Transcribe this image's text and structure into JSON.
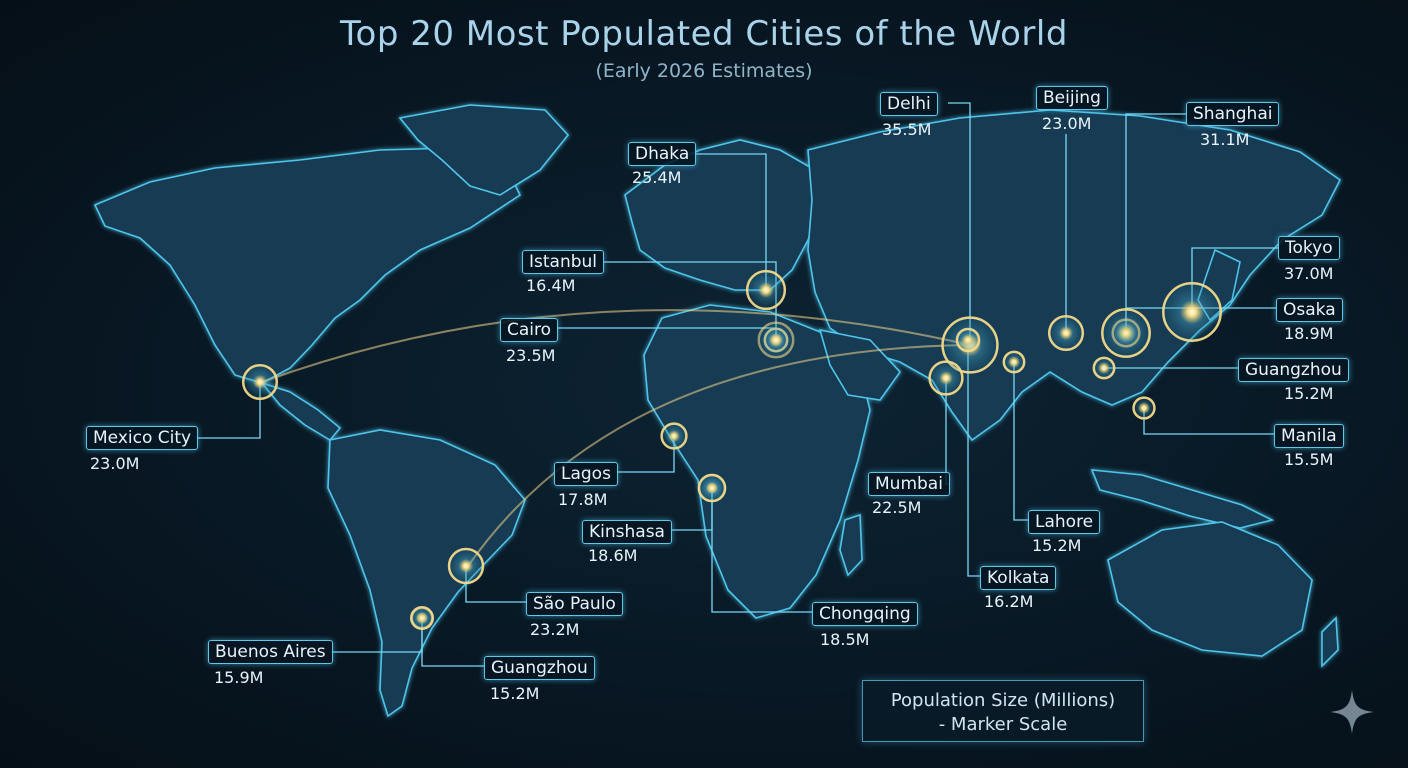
{
  "title": "Top 20 Most Populated Cities of the World",
  "subtitle": "(Early 2026 Estimates)",
  "legend": {
    "line1": "Population Size (Millions)",
    "line2": "- Marker Scale"
  },
  "colors": {
    "land": "#123a52",
    "coast": "#4fc4ea",
    "glow": "#f3d98a",
    "label_border": "#5ec8e8"
  },
  "cities": [
    {
      "name": "Delhi",
      "value": "35.5M",
      "pop": 35.5
    },
    {
      "name": "Beijing",
      "value": "23.0M",
      "pop": 23.0
    },
    {
      "name": "Shanghai",
      "value": "31.1M",
      "pop": 31.1
    },
    {
      "name": "Dhaka",
      "value": "25.4M",
      "pop": 25.4
    },
    {
      "name": "Istanbul",
      "value": "16.4M",
      "pop": 16.4
    },
    {
      "name": "Tokyo",
      "value": "37.0M",
      "pop": 37.0
    },
    {
      "name": "Osaka",
      "value": "18.9M",
      "pop": 18.9
    },
    {
      "name": "Cairo",
      "value": "23.5M",
      "pop": 23.5
    },
    {
      "name": "Guangzhou",
      "value": "15.2M",
      "pop": 15.2
    },
    {
      "name": "Mexico City",
      "value": "23.0M",
      "pop": 23.0
    },
    {
      "name": "Manila",
      "value": "15.5M",
      "pop": 15.5
    },
    {
      "name": "Lagos",
      "value": "17.8M",
      "pop": 17.8
    },
    {
      "name": "Mumbai",
      "value": "22.5M",
      "pop": 22.5
    },
    {
      "name": "Kinshasa",
      "value": "18.6M",
      "pop": 18.6
    },
    {
      "name": "Lahore",
      "value": "15.2M",
      "pop": 15.2
    },
    {
      "name": "Kolkata",
      "value": "16.2M",
      "pop": 16.2
    },
    {
      "name": "São Paulo",
      "value": "23.2M",
      "pop": 23.2
    },
    {
      "name": "Chongqing",
      "value": "18.5M",
      "pop": 18.5
    },
    {
      "name": "Buenos Aires",
      "value": "15.9M",
      "pop": 15.9
    },
    {
      "name": "Guangzhou",
      "value": "15.2M",
      "pop": 15.2
    }
  ]
}
